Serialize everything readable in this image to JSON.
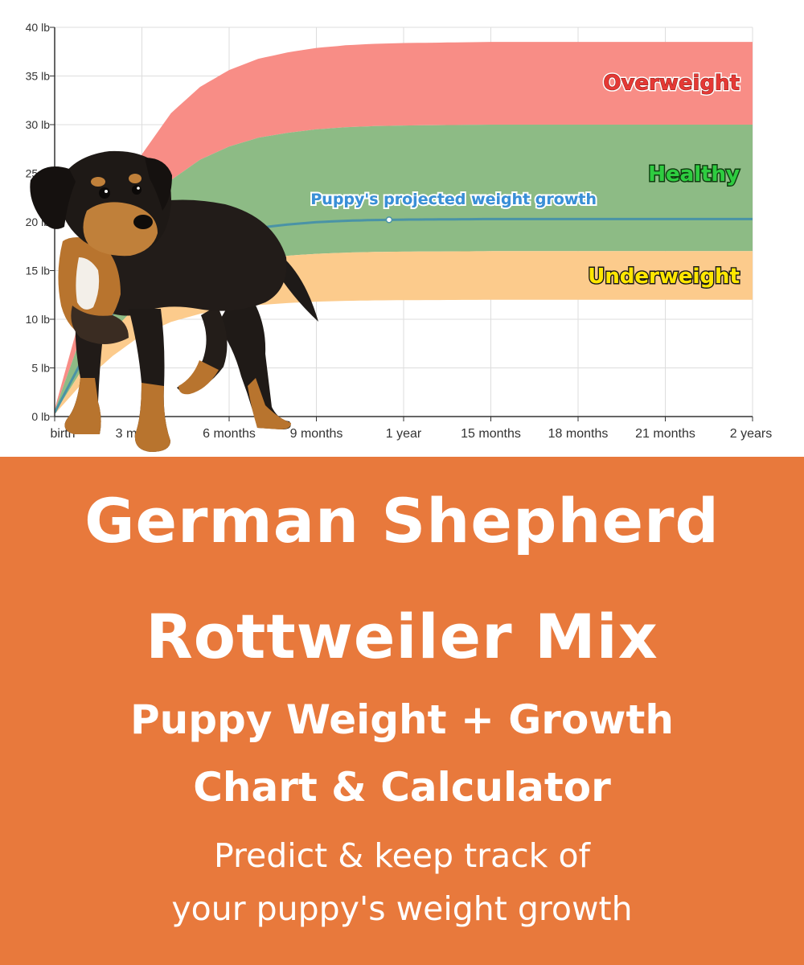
{
  "chart_data": {
    "type": "area",
    "title": "",
    "xlabel": "",
    "ylabel": "",
    "x_tick_labels": [
      "birth",
      "3 months",
      "6 months",
      "9 months",
      "1 year",
      "15 months",
      "18 months",
      "21 months",
      "2 years"
    ],
    "y_tick_labels": [
      "0 lb",
      "5 lb",
      "10 lb",
      "15 lb",
      "20 lb",
      "25 lb",
      "30 lb",
      "35 lb",
      "40 lb"
    ],
    "x_range_months": [
      0,
      24
    ],
    "ylim": [
      0,
      40
    ],
    "grid": true,
    "bands": [
      {
        "name": "Overweight",
        "color": "#f88d86",
        "upper_max": 38.5,
        "lower_max": 30
      },
      {
        "name": "Healthy",
        "color": "#8dbb85",
        "upper_max": 30,
        "lower_max": 17
      },
      {
        "name": "Underweight",
        "color": "#fccb8c",
        "upper_max": 17,
        "lower_max": 12
      }
    ],
    "projection": {
      "name": "Puppy's projected weight growth",
      "color": "#4a93a6",
      "max": 20.3,
      "marker_x_months": 11.5
    },
    "series_curve": {
      "x_months": [
        0,
        1,
        2,
        3,
        4,
        5,
        6,
        7,
        8,
        9,
        10,
        11,
        12,
        15,
        18,
        21,
        24
      ],
      "fraction_of_max": [
        0.02,
        0.3,
        0.52,
        0.7,
        0.81,
        0.88,
        0.925,
        0.955,
        0.972,
        0.984,
        0.991,
        0.995,
        0.997,
        1.0,
        1.0,
        1.0,
        1.0
      ]
    }
  },
  "image": {
    "subject": "puppy-photo"
  },
  "banner": {
    "title_line1": "German Shepherd",
    "title_line2": "Rottweiler Mix",
    "subtitle_line1": "Puppy Weight + Growth",
    "subtitle_line2": "Chart & Calculator",
    "desc_line1": "Predict & keep track of",
    "desc_line2": "your puppy's weight growth"
  },
  "colors": {
    "banner_bg": "#e8793c",
    "banner_text": "#ffffff",
    "overweight_label": "#e53935",
    "healthy_label": "#2ecc40",
    "underweight_label": "#ffe600",
    "projection_label": "#3a8fd6"
  }
}
